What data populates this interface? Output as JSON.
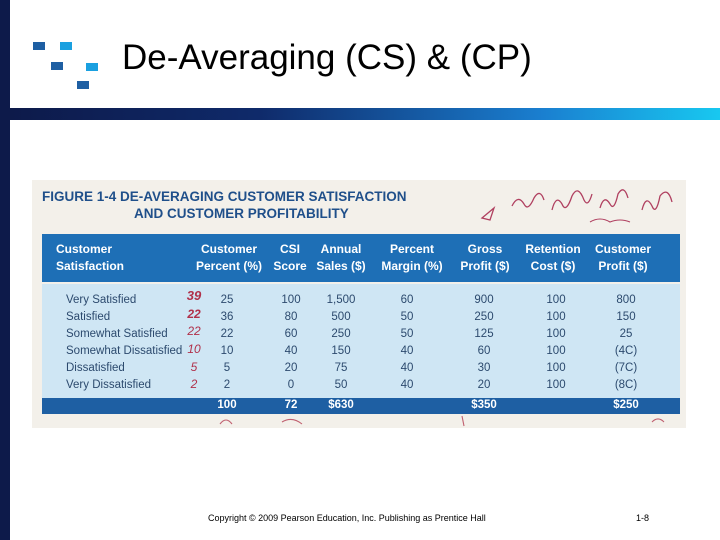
{
  "slide": {
    "title": "De-Averaging (CS) & (CP)",
    "copyright": "Copyright © 2009 Pearson Education, Inc.  Publishing as Prentice Hall",
    "page_number": "1-8"
  },
  "figure": {
    "label": "FIGURE 1-4",
    "title_line1": "DE-AVERAGING CUSTOMER SATISFACTION",
    "title_line2": "AND CUSTOMER PROFITABILITY",
    "headers": [
      {
        "line1": "Customer",
        "line2": "Satisfaction"
      },
      {
        "line1": "Customer",
        "line2": "Percent (%)"
      },
      {
        "line1": "CSI",
        "line2": "Score"
      },
      {
        "line1": "Annual",
        "line2": "Sales ($)"
      },
      {
        "line1": "Percent",
        "line2": "Margin (%)"
      },
      {
        "line1": "Gross",
        "line2": "Profit ($)"
      },
      {
        "line1": "Retention",
        "line2": "Cost ($)"
      },
      {
        "line1": "Customer",
        "line2": "Profit ($)"
      }
    ],
    "rows": [
      {
        "label": "Very Satisfied",
        "values": [
          "25",
          "100",
          "1,500",
          "60",
          "900",
          "100",
          "800"
        ]
      },
      {
        "label": "Satisfied",
        "values": [
          "36",
          "80",
          "500",
          "50",
          "250",
          "100",
          "150"
        ]
      },
      {
        "label": "Somewhat Satisfied",
        "values": [
          "22",
          "60",
          "250",
          "50",
          "125",
          "100",
          "25"
        ]
      },
      {
        "label": "Somewhat Dissatisfied",
        "values": [
          "10",
          "40",
          "150",
          "40",
          "60",
          "100",
          "(4C)"
        ]
      },
      {
        "label": "Dissatisfied",
        "values": [
          "5",
          "20",
          "75",
          "40",
          "30",
          "100",
          "(7C)"
        ]
      },
      {
        "label": "Very Dissatisfied",
        "values": [
          "2",
          "0",
          "50",
          "40",
          "20",
          "100",
          "(8C)"
        ]
      }
    ],
    "totals": [
      "100",
      "72",
      "$630",
      "",
      "$350",
      "",
      "$250"
    ],
    "handwritten_row_marks": [
      "39",
      "22",
      "22",
      "10",
      "5",
      "2"
    ]
  },
  "colors": {
    "header_blue": "#1e6fb6",
    "body_blue": "#cfe6f4",
    "title_blue": "#1f4f8a",
    "accent_left": "#0d1a4a",
    "accent_right": "#18c8f0"
  }
}
